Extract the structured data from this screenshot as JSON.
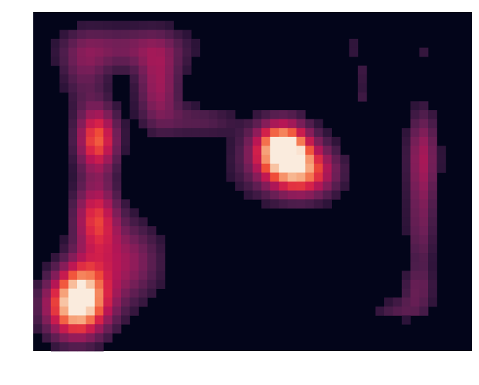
{
  "chart_data": {
    "type": "heatmap",
    "title": "",
    "xlabel": "",
    "ylabel": "",
    "colormap": "rocket",
    "background_color": "#03051A",
    "value_range": [
      0,
      1
    ],
    "n_rows": 38,
    "n_cols": 50,
    "blobs": [
      {
        "name": "lower-left-hotspot",
        "cx": 5.0,
        "cy": 33.0,
        "sx": 2.6,
        "sy": 2.6,
        "amp": 1.0
      },
      {
        "name": "left-column-upper",
        "cx": 7.3,
        "cy": 14.3,
        "sx": 1.7,
        "sy": 2.6,
        "amp": 0.72
      },
      {
        "name": "left-column-middle",
        "cx": 7.1,
        "cy": 23.0,
        "sx": 1.8,
        "sy": 2.9,
        "amp": 0.6
      },
      {
        "name": "left-column-lower",
        "cx": 10.5,
        "cy": 28.0,
        "sx": 3.0,
        "sy": 3.3,
        "amp": 0.4
      },
      {
        "name": "left-column-base",
        "cx": 5.5,
        "cy": 30.0,
        "sx": 1.9,
        "sy": 2.2,
        "amp": 0.3
      },
      {
        "name": "top-loop-right",
        "cx": 14.3,
        "cy": 8.5,
        "sx": 1.8,
        "sy": 3.3,
        "amp": 0.42
      },
      {
        "name": "top-loop-arc",
        "cx": 11.0,
        "cy": 4.0,
        "sx": 5.2,
        "sy": 1.8,
        "amp": 0.3
      },
      {
        "name": "top-loop-left",
        "cx": 5.8,
        "cy": 6.5,
        "sx": 2.0,
        "sy": 3.0,
        "amp": 0.25
      },
      {
        "name": "left-bridge",
        "cx": 19.0,
        "cy": 12.2,
        "sx": 3.0,
        "sy": 1.3,
        "amp": 0.22
      },
      {
        "name": "center-hotspot-core",
        "cx": 28.4,
        "cy": 15.2,
        "sx": 2.1,
        "sy": 2.1,
        "amp": 0.88
      },
      {
        "name": "center-hotspot-tail",
        "cx": 31.0,
        "cy": 18.0,
        "sx": 2.6,
        "sy": 2.0,
        "amp": 0.55
      },
      {
        "name": "center-hotspot-halo",
        "cx": 28.0,
        "cy": 17.0,
        "sx": 4.2,
        "sy": 3.1,
        "amp": 0.28
      },
      {
        "name": "right-bar-upper",
        "cx": 44.4,
        "cy": 16.0,
        "sx": 1.3,
        "sy": 3.8,
        "amp": 0.42
      },
      {
        "name": "right-bar-middle",
        "cx": 44.2,
        "cy": 24.5,
        "sx": 1.2,
        "sy": 4.0,
        "amp": 0.27
      },
      {
        "name": "right-bar-lower",
        "cx": 43.8,
        "cy": 31.2,
        "sx": 1.4,
        "sy": 1.7,
        "amp": 0.22
      },
      {
        "name": "right-bar-foot",
        "cx": 41.5,
        "cy": 33.4,
        "sx": 2.3,
        "sy": 0.9,
        "amp": 0.2
      },
      {
        "name": "speck-column-1",
        "cx": 36.9,
        "cy": 4.0,
        "sx": 0.6,
        "sy": 0.9,
        "amp": 0.18
      },
      {
        "name": "speck-column-2",
        "cx": 37.3,
        "cy": 6.8,
        "sx": 0.6,
        "sy": 0.9,
        "amp": 0.17
      },
      {
        "name": "speck-column-3",
        "cx": 37.6,
        "cy": 9.4,
        "sx": 0.7,
        "sy": 1.0,
        "amp": 0.16
      },
      {
        "name": "speck-right",
        "cx": 44.5,
        "cy": 4.3,
        "sx": 0.5,
        "sy": 0.5,
        "amp": 0.14
      }
    ],
    "grid": false,
    "legend": "none",
    "ticks": "none"
  }
}
